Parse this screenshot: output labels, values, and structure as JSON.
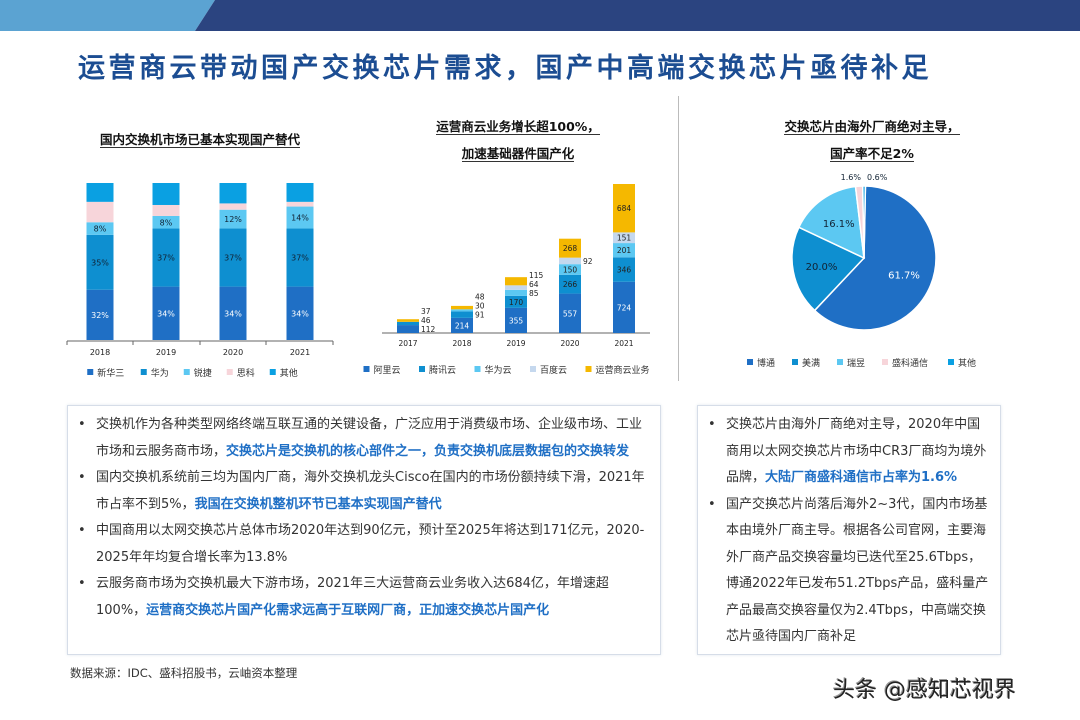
{
  "header": {
    "accent_light": "#5ba3d2",
    "accent_dark": "#2b4480"
  },
  "title": "运营商云带动国产交换芯片需求，国产中高端交换芯片亟待补足",
  "chart_data": [
    {
      "type": "bar",
      "stacked": true,
      "title": "国内交换机市场已基本实现国产替代",
      "categories": [
        "2018",
        "2019",
        "2020",
        "2021"
      ],
      "unit": "%",
      "series": [
        {
          "name": "新华三",
          "color": "#1f6fc5",
          "values": [
            32,
            34,
            34,
            34
          ],
          "labels": [
            "32%",
            "34%",
            "34%",
            "34%"
          ]
        },
        {
          "name": "华为",
          "color": "#0e8fd0",
          "values": [
            35,
            37,
            37,
            37
          ],
          "labels": [
            "35%",
            "37%",
            "37%",
            "37%"
          ]
        },
        {
          "name": "锐捷",
          "color": "#5cc8f2",
          "values": [
            8,
            8,
            12,
            14
          ],
          "labels": [
            "8%",
            "8%",
            "12%",
            "14%"
          ]
        },
        {
          "name": "思科",
          "color": "#f7d5da",
          "values": [
            13,
            7,
            4,
            3
          ],
          "labels": [
            "",
            "",
            "",
            ""
          ]
        },
        {
          "name": "其他",
          "color": "#0aa0e2",
          "values": [
            12,
            14,
            13,
            12
          ],
          "labels": [
            "",
            "",
            "",
            ""
          ]
        }
      ],
      "ylim": [
        0,
        100
      ],
      "legend": "bottom"
    },
    {
      "type": "bar",
      "stacked": true,
      "title": [
        "运营商云业务增长超100%，",
        "加速基础器件国产化"
      ],
      "categories": [
        "2017",
        "2018",
        "2019",
        "2020",
        "2021"
      ],
      "series": [
        {
          "name": "阿里云",
          "color": "#1f6fc5",
          "values": [
            112,
            214,
            355,
            557,
            724
          ]
        },
        {
          "name": "腾讯云",
          "color": "#0e8fd0",
          "values": [
            46,
            91,
            170,
            266,
            346
          ]
        },
        {
          "name": "华为云",
          "color": "#5cc8f2",
          "values": [
            0,
            30,
            85,
            150,
            201
          ]
        },
        {
          "name": "百度云",
          "color": "#c5d8ee",
          "values": [
            0,
            0,
            64,
            92,
            151
          ]
        },
        {
          "name": "运营商云业务",
          "color": "#f5b800",
          "values": [
            37,
            48,
            115,
            268,
            684
          ]
        }
      ],
      "legend": "bottom"
    },
    {
      "type": "pie",
      "title": [
        "交换芯片由海外厂商绝对主导，",
        "国产率不足2%"
      ],
      "slices": [
        {
          "name": "博通",
          "value": 61.7,
          "label": "61.7%",
          "color": "#1f6fc5"
        },
        {
          "name": "美满",
          "value": 20.0,
          "label": "20.0%",
          "color": "#0e8fd0"
        },
        {
          "name": "瑞昱",
          "value": 16.1,
          "label": "16.1%",
          "color": "#5cc8f2"
        },
        {
          "name": "盛科通信",
          "value": 1.6,
          "label": "1.6%",
          "color": "#f7d5da"
        },
        {
          "name": "其他",
          "value": 0.6,
          "label": "0.6%",
          "color": "#0aa0e2"
        }
      ],
      "legend": "bottom"
    }
  ],
  "left_box": [
    [
      {
        "t": "交换机作为各种类型网络终端互联互通的关键设备，广泛应用于消费级市场、企业级市场、工业市场和云服务商市场，"
      },
      {
        "t": "交换芯片是交换机的核心部件之一，负责交换机底层数据包的交换转发",
        "hl": true
      }
    ],
    [
      {
        "t": "国内交换机系统前三均为国内厂商，海外交换机龙头Cisco在国内的市场份额持续下滑，2021年市占率不到5%，"
      },
      {
        "t": "我国在交换机整机环节已基本实现国产替代",
        "hl": true
      }
    ],
    [
      {
        "t": "中国商用以太网交换芯片总体市场2020年达到90亿元，预计至2025年将达到171亿元，2020-2025年年均复合增长率为13.8%"
      }
    ],
    [
      {
        "t": "云服务商市场为交换机最大下游市场，2021年三大运营商云业务收入达684亿，年增速超100%，"
      },
      {
        "t": "运营商交换芯片国产化需求远高于互联网厂商，正加速交换芯片国产化",
        "hl": true
      }
    ]
  ],
  "right_box": [
    [
      {
        "t": "交换芯片由海外厂商绝对主导，2020年中国商用以太网交换芯片市场中CR3厂商均为境外品牌，"
      },
      {
        "t": "大陆厂商盛科通信市占率为1.6%",
        "hl": true
      }
    ],
    [
      {
        "t": "国产交换芯片尚落后海外2~3代，国内市场基本由境外厂商主导。根据各公司官网，主要海外厂商产品交换容量均已迭代至25.6Tbps，博通2022年已发布51.2Tbps产品，盛科量产产品最高交换容量仅为2.4Tbps，中高端交换芯片亟待国内厂商补足"
      }
    ]
  ],
  "source": "数据来源：IDC、盛科招股书，云岫资本整理",
  "watermark": "头条 @感知芯视界"
}
